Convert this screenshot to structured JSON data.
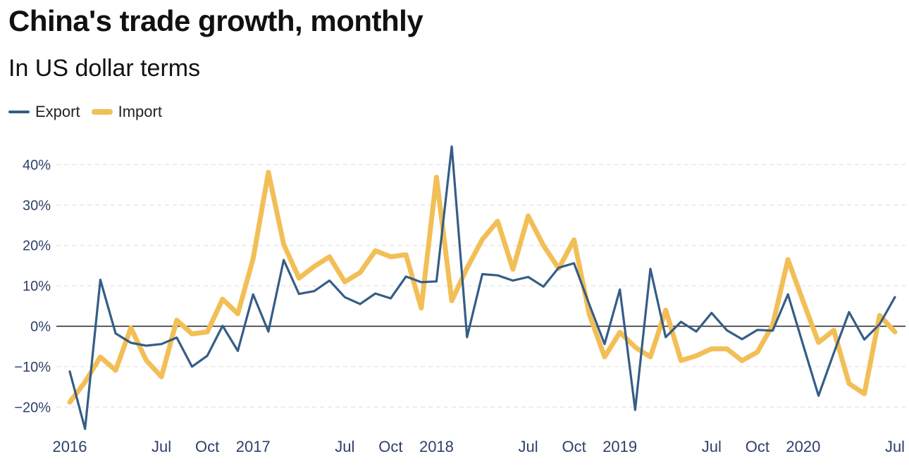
{
  "header": {
    "title": "China's trade growth, monthly",
    "subtitle": "In US dollar terms"
  },
  "legend": {
    "items": [
      {
        "label": "Export",
        "color": "#355d86"
      },
      {
        "label": "Import",
        "color": "#f2bf57"
      }
    ]
  },
  "chart_data": {
    "type": "line",
    "title": "China's trade growth, monthly",
    "subtitle": "In US dollar terms",
    "xlabel": "",
    "ylabel": "",
    "ylim": [
      -25,
      45
    ],
    "y_ticks": [
      -20,
      -10,
      0,
      10,
      20,
      30,
      40
    ],
    "y_tick_labels": [
      "−20%",
      "−10%",
      "0%",
      "10%",
      "20%",
      "30%",
      "40%"
    ],
    "grid": "horizontal dashed",
    "legend_position": "top-left",
    "x_tick_labels": [
      {
        "index": 0,
        "label": "2016"
      },
      {
        "index": 6,
        "label": "Jul"
      },
      {
        "index": 9,
        "label": "Oct"
      },
      {
        "index": 12,
        "label": "2017"
      },
      {
        "index": 18,
        "label": "Jul"
      },
      {
        "index": 21,
        "label": "Oct"
      },
      {
        "index": 24,
        "label": "2018"
      },
      {
        "index": 30,
        "label": "Jul"
      },
      {
        "index": 33,
        "label": "Oct"
      },
      {
        "index": 36,
        "label": "2019"
      },
      {
        "index": 42,
        "label": "Jul"
      },
      {
        "index": 45,
        "label": "Oct"
      },
      {
        "index": 48,
        "label": "2020"
      },
      {
        "index": 54,
        "label": "Jul"
      }
    ],
    "x": [
      "2016-01",
      "2016-02",
      "2016-03",
      "2016-04",
      "2016-05",
      "2016-06",
      "2016-07",
      "2016-08",
      "2016-09",
      "2016-10",
      "2016-11",
      "2016-12",
      "2017-01",
      "2017-02",
      "2017-03",
      "2017-04",
      "2017-05",
      "2017-06",
      "2017-07",
      "2017-08",
      "2017-09",
      "2017-10",
      "2017-11",
      "2017-12",
      "2018-01",
      "2018-02",
      "2018-03",
      "2018-04",
      "2018-05",
      "2018-06",
      "2018-07",
      "2018-08",
      "2018-09",
      "2018-10",
      "2018-11",
      "2018-12",
      "2019-01",
      "2019-02",
      "2019-03",
      "2019-04",
      "2019-05",
      "2019-06",
      "2019-07",
      "2019-08",
      "2019-09",
      "2019-10",
      "2019-11",
      "2019-12",
      "2020-01",
      "2020-02",
      "2020-03",
      "2020-04",
      "2020-05",
      "2020-06",
      "2020-07"
    ],
    "series": [
      {
        "name": "Export",
        "color": "#355d86",
        "values": [
          -11.2,
          -25.4,
          11.5,
          -1.8,
          -4.1,
          -4.8,
          -4.4,
          -2.8,
          -10.0,
          -7.3,
          0.1,
          -6.1,
          7.9,
          -1.3,
          16.4,
          8.0,
          8.7,
          11.3,
          7.2,
          5.5,
          8.1,
          6.9,
          12.3,
          10.9,
          11.1,
          44.5,
          -2.7,
          12.9,
          12.6,
          11.3,
          12.2,
          9.8,
          14.5,
          15.6,
          5.4,
          -4.4,
          9.1,
          -20.7,
          14.2,
          -2.7,
          1.1,
          -1.3,
          3.3,
          -1.0,
          -3.2,
          -0.9,
          -1.1,
          7.9,
          -4.7,
          -17.2,
          -6.6,
          3.5,
          -3.3,
          0.5,
          7.2
        ]
      },
      {
        "name": "Import",
        "color": "#f2bf57",
        "values": [
          -18.8,
          -13.8,
          -7.6,
          -10.9,
          -0.4,
          -8.4,
          -12.5,
          1.5,
          -1.9,
          -1.4,
          6.7,
          3.1,
          16.7,
          38.1,
          20.3,
          11.9,
          14.8,
          17.2,
          11.0,
          13.3,
          18.7,
          17.2,
          17.7,
          4.5,
          36.9,
          6.3,
          14.4,
          21.5,
          26.0,
          14.1,
          27.3,
          20.0,
          14.3,
          21.4,
          3.0,
          -7.6,
          -1.5,
          -5.2,
          -7.6,
          4.0,
          -8.5,
          -7.3,
          -5.6,
          -5.6,
          -8.5,
          -6.4,
          0.3,
          16.5,
          6.1,
          -4.0,
          -1.0,
          -14.2,
          -16.7,
          2.7,
          -1.4
        ]
      }
    ]
  }
}
